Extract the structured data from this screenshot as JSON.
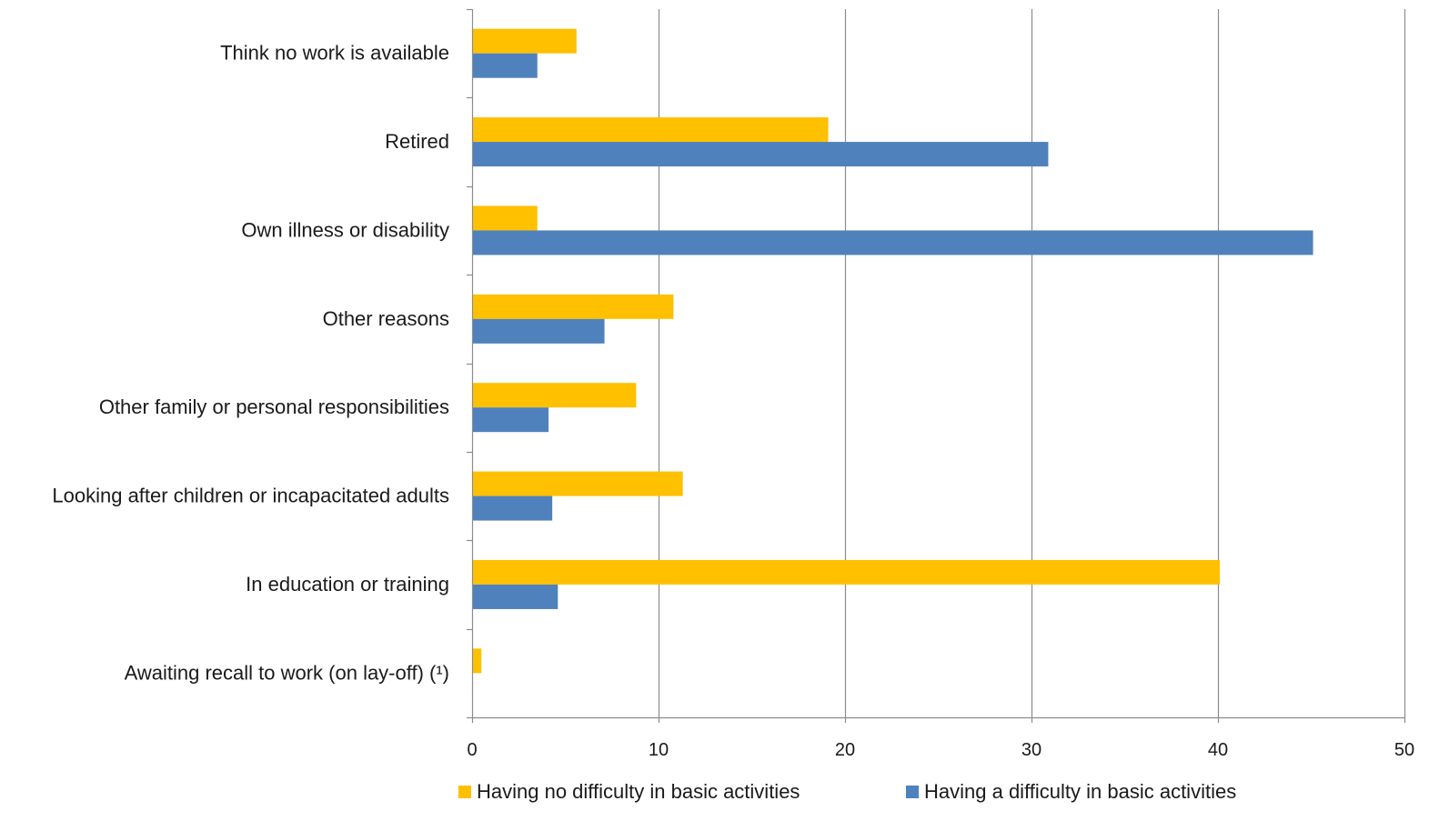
{
  "chart_data": {
    "type": "bar",
    "orientation": "horizontal",
    "title": "",
    "xlabel": "",
    "ylabel": "",
    "categories": [
      "Think no work is available",
      "Retired",
      "Own illness or disability",
      "Other reasons",
      "Other family or personal responsibilities",
      "Looking after children or incapacitated adults",
      "In education or training",
      "Awaiting recall to work (on lay-off) (¹)"
    ],
    "series": [
      {
        "name": "Having no difficulty in basic activities",
        "color": "#FFC000",
        "values": [
          5.6,
          19.1,
          3.5,
          10.8,
          8.8,
          11.3,
          40.1,
          0.5
        ]
      },
      {
        "name": "Having a difficulty in basic activities",
        "color": "#4F81BD",
        "values": [
          3.5,
          30.9,
          45.1,
          7.1,
          4.1,
          4.3,
          4.6,
          null
        ]
      }
    ],
    "xlim": [
      0,
      50
    ],
    "xticks": [
      0,
      10,
      20,
      30,
      40,
      50
    ],
    "grid": true,
    "legend_position": "bottom"
  }
}
